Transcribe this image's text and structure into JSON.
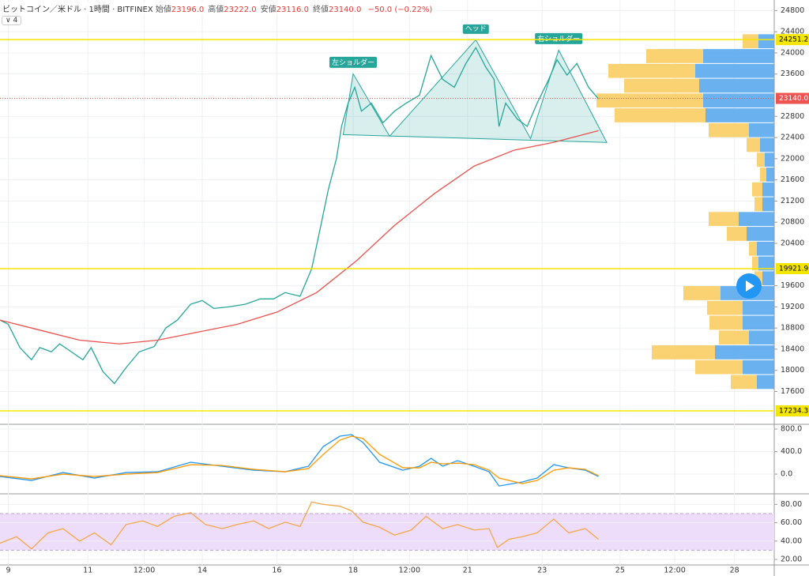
{
  "header": {
    "title": "ビットコイン／米ドル · 1時間 · BITFINEX",
    "ohlc": [
      {
        "label": "始値",
        "value": "23196.0"
      },
      {
        "label": "高値",
        "value": "23222.0"
      },
      {
        "label": "安値",
        "value": "23116.0"
      },
      {
        "label": "終値",
        "value": "23140.0"
      }
    ],
    "change": "−50.0 (−0.22%)",
    "indicator_count": "4"
  },
  "chart_data": [
    {
      "type": "line",
      "xlim": [
        -5,
        462
      ],
      "ylim": [
        16980,
        25000
      ],
      "grid": true,
      "yticks": [
        24800,
        24400,
        24000,
        23600,
        22800,
        22400,
        22000,
        21600,
        21200,
        20800,
        20400,
        19600,
        19200,
        18800,
        18400,
        18000,
        17600
      ],
      "series": [
        {
          "color": "#26a69a",
          "x": [
            -5,
            0,
            7,
            14,
            19,
            26,
            31,
            38,
            45,
            50,
            57,
            64,
            71,
            79,
            88,
            95,
            102,
            110,
            117,
            124,
            133,
            143,
            152,
            160,
            167,
            176,
            183,
            188,
            193,
            198,
            201,
            205,
            209,
            213,
            219,
            226,
            233,
            240,
            248,
            255,
            262,
            269,
            276,
            282,
            288,
            293,
            296,
            300,
            307,
            313,
            319,
            326,
            331,
            337,
            343,
            350,
            356
          ],
          "values": [
            18950,
            18870,
            18430,
            18200,
            18430,
            18350,
            18500,
            18350,
            18200,
            18430,
            17980,
            17750,
            18050,
            18350,
            18450,
            18800,
            18950,
            19250,
            19320,
            19170,
            19200,
            19250,
            19350,
            19350,
            19470,
            19400,
            19920,
            20660,
            21410,
            22010,
            22610,
            23050,
            23350,
            22900,
            23050,
            22680,
            22900,
            23050,
            23200,
            23950,
            23500,
            23350,
            23800,
            24100,
            23730,
            23500,
            22610,
            23050,
            22750,
            22610,
            23050,
            23500,
            23870,
            23580,
            23800,
            23350,
            23130
          ]
        },
        {
          "color": "#e8534f",
          "x": [
            -5,
            19,
            43,
            67,
            90,
            114,
            138,
            162,
            186,
            210,
            233,
            257,
            281,
            305,
            329,
            356
          ],
          "values": [
            18950,
            18760,
            18570,
            18500,
            18570,
            18720,
            18870,
            19100,
            19470,
            20070,
            20740,
            21340,
            21860,
            22160,
            22310,
            22530
          ]
        }
      ],
      "levels": [
        24251.2,
        19921.9,
        17234.3
      ],
      "level_color": "#f5e600",
      "last_price": {
        "value": 23140,
        "label": "23140.0"
      },
      "last_color": "#ef5350",
      "pattern": {
        "x": [
          202,
          208,
          230,
          282,
          315,
          332,
          361
        ],
        "values": [
          22456,
          23605,
          22426,
          24248,
          22381,
          24053,
          22307
        ],
        "labels": [
          "左ショルダー",
          "ヘッド",
          "右ショルダー"
        ],
        "color": "#26a69a"
      },
      "volume_profile": {
        "xlim": [
          0,
          240
        ],
        "bins": [
          24360,
          24080,
          23800,
          23520,
          23240,
          22960,
          22680,
          22400,
          22120,
          21840,
          21560,
          21280,
          21000,
          20720,
          20440,
          20160,
          19880,
          19600,
          19320,
          19040,
          18760,
          18480,
          18200,
          17920,
          17640
        ],
        "series": [
          {
            "color": "#5aa9ee",
            "values": [
              20,
              90,
              100,
              95,
              90,
              87,
              32,
              18,
              12,
              10,
              15,
              15,
              45,
              35,
              22,
              20,
              15,
              68,
              40,
              40,
              32,
              75,
              40,
              22
            ]
          },
          {
            "color": "#fbcd62",
            "values": [
              20,
              72,
              110,
              95,
              135,
              115,
              51,
              17,
              10,
              8,
              13,
              10,
              38,
              25,
              10,
              8,
              10,
              47,
              45,
              42,
              38,
              80,
              60,
              33
            ]
          }
        ]
      }
    },
    {
      "type": "line",
      "xlim": [
        -5,
        462
      ],
      "ylim": [
        -350,
        885
      ],
      "grid": true,
      "yticks": [
        {
          "value": 800,
          "label": "800.0"
        },
        {
          "value": 400,
          "label": "400.0"
        },
        {
          "value": 0,
          "label": "0.0"
        }
      ],
      "x": [
        -5,
        14,
        33,
        52,
        71,
        90,
        110,
        129,
        148,
        167,
        181,
        190,
        200,
        207,
        214,
        224,
        238,
        248,
        255,
        262,
        271,
        281,
        290,
        296,
        310,
        319,
        329,
        338,
        348,
        356
      ],
      "series": [
        {
          "color": "#2196f3",
          "values": [
            -42,
            -112,
            28,
            -70,
            28,
            42,
            211,
            140,
            70,
            42,
            140,
            491,
            674,
            702,
            561,
            211,
            70,
            140,
            281,
            140,
            239,
            140,
            42,
            -211,
            -140,
            -70,
            168,
            112,
            70,
            -42
          ]
        },
        {
          "color": "#ff9800",
          "values": [
            -28,
            -84,
            0,
            -42,
            0,
            28,
            168,
            154,
            84,
            42,
            98,
            351,
            604,
            674,
            632,
            351,
            112,
            112,
            211,
            182,
            196,
            168,
            70,
            -70,
            -168,
            -112,
            70,
            112,
            84,
            -28
          ]
        }
      ]
    },
    {
      "type": "line",
      "xlim": [
        -5,
        462
      ],
      "ylim": [
        14,
        91.5
      ],
      "grid": true,
      "yticks": [
        {
          "value": 80,
          "label": "80.00"
        },
        {
          "value": 60,
          "label": "60.00"
        },
        {
          "value": 40,
          "label": "40.00"
        },
        {
          "value": 20,
          "label": "20.00"
        }
      ],
      "band": [
        30,
        70
      ],
      "band_color": "#eedcfb",
      "xticks": [
        {
          "value": 0,
          "label": "9"
        },
        {
          "value": 48,
          "label": "11"
        },
        {
          "value": 82,
          "label": "12:00"
        },
        {
          "value": 117,
          "label": "14"
        },
        {
          "value": 162,
          "label": "16"
        },
        {
          "value": 208,
          "label": "18"
        },
        {
          "value": 242,
          "label": "12:00"
        },
        {
          "value": 277,
          "label": "21"
        },
        {
          "value": 322,
          "label": "23"
        },
        {
          "value": 369,
          "label": "25"
        },
        {
          "value": 402,
          "label": "12:00"
        },
        {
          "value": 438,
          "label": "28"
        }
      ],
      "x": [
        -5,
        5,
        14,
        24,
        33,
        43,
        52,
        62,
        71,
        81,
        90,
        100,
        110,
        119,
        129,
        138,
        148,
        157,
        167,
        176,
        183,
        190,
        200,
        207,
        214,
        224,
        233,
        243,
        252,
        262,
        271,
        281,
        290,
        295,
        302,
        310,
        319,
        329,
        338,
        348,
        356
      ],
      "series": [
        {
          "color": "#f5a84a",
          "values": [
            37.7,
            44.8,
            31.5,
            49,
            53.6,
            40,
            49,
            36,
            58,
            62,
            56,
            67,
            71,
            58,
            53.6,
            58,
            62,
            53.6,
            60.6,
            56,
            82.6,
            80,
            78,
            73,
            60.6,
            55,
            46.5,
            52,
            67,
            53.6,
            58,
            52,
            53.6,
            33,
            42,
            44.8,
            49,
            64,
            49,
            53.6,
            42
          ]
        }
      ]
    }
  ]
}
